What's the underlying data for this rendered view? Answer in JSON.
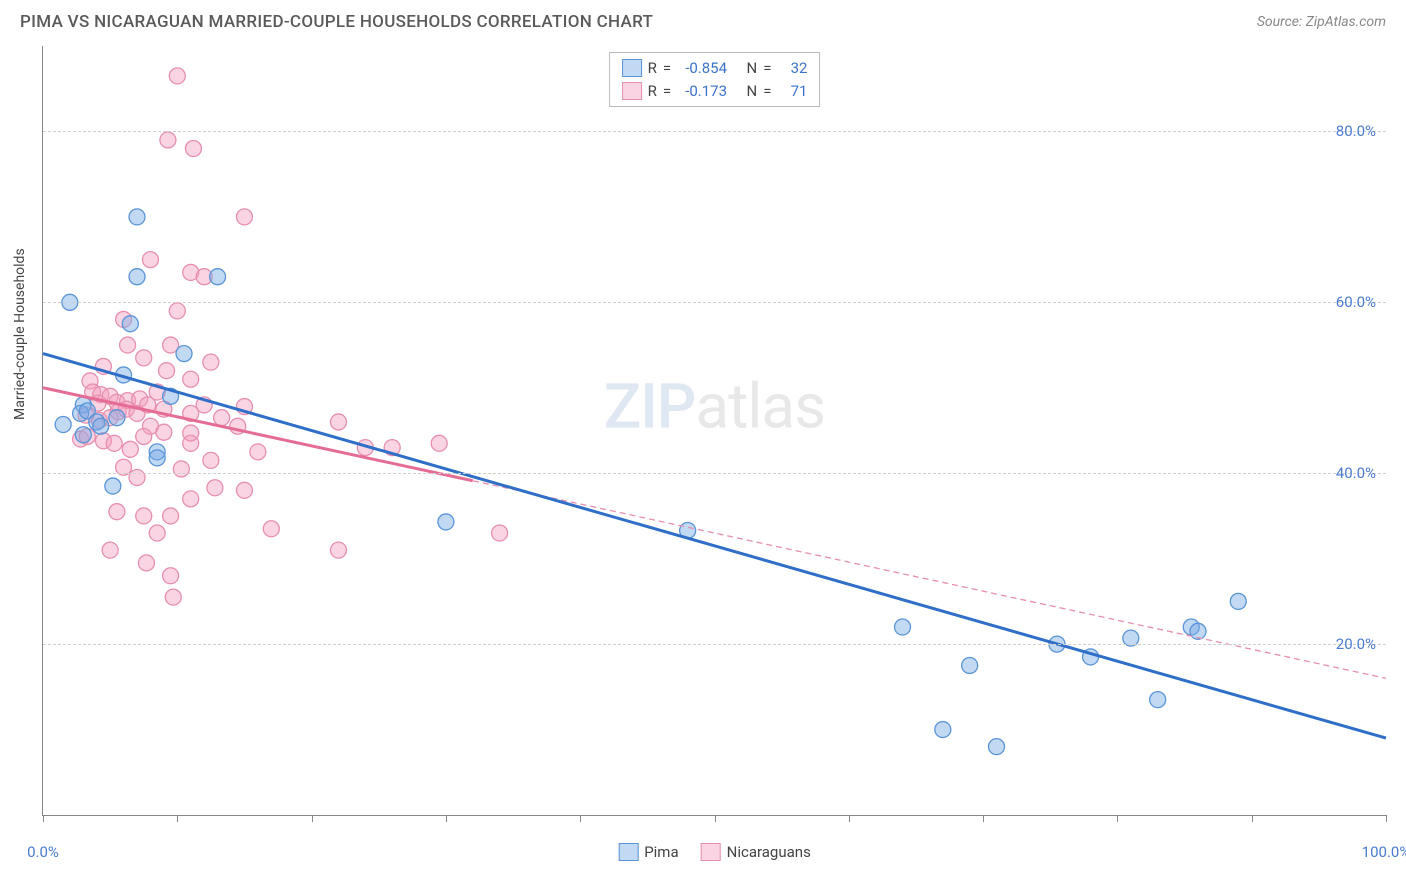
{
  "header": {
    "title": "PIMA VS NICARAGUAN MARRIED-COUPLE HOUSEHOLDS CORRELATION CHART",
    "source": "Source: ZipAtlas.com"
  },
  "chart": {
    "type": "scatter",
    "ylabel": "Married-couple Households",
    "background_color": "#ffffff",
    "grid_color": "#d0d0d0",
    "axis_color": "#888888",
    "tick_color": "#4a7bd0",
    "xlim": [
      0,
      100
    ],
    "ylim": [
      0,
      90
    ],
    "xticks": [
      0,
      10,
      20,
      30,
      40,
      50,
      60,
      70,
      80,
      90,
      100
    ],
    "xtick_labels": {
      "0": "0.0%",
      "100": "100.0%"
    },
    "yticks": [
      20,
      40,
      60,
      80
    ],
    "ytick_labels": {
      "20": "20.0%",
      "40": "40.0%",
      "60": "60.0%",
      "80": "80.0%"
    },
    "marker_radius": 8,
    "marker_opacity": 0.5,
    "watermark": {
      "zip": "ZIP",
      "rest": "atlas"
    }
  },
  "legend_stats": [
    {
      "color": "blue",
      "r_label": "R",
      "r": "-0.854",
      "n_label": "N",
      "n": "32"
    },
    {
      "color": "pink",
      "r_label": "R",
      "r": "-0.173",
      "n_label": "N",
      "n": "71"
    }
  ],
  "bottom_legend": [
    {
      "color": "blue",
      "label": "Pima"
    },
    {
      "color": "pink",
      "label": "Nicaraguans"
    }
  ],
  "series": {
    "pima": {
      "color_fill": "rgba(120,170,230,0.45)",
      "color_stroke": "#5a95d8",
      "trend": {
        "x1": 0,
        "y1": 54,
        "x2": 100,
        "y2": 9,
        "stroke": "#2f6fc8",
        "width": 3,
        "dash": ""
      },
      "points": [
        [
          7,
          70
        ],
        [
          7,
          63
        ],
        [
          2,
          60
        ],
        [
          6.5,
          57.5
        ],
        [
          13,
          63
        ],
        [
          10.5,
          54
        ],
        [
          6,
          51.5
        ],
        [
          3,
          48
        ],
        [
          2.8,
          47
        ],
        [
          3.3,
          47.3
        ],
        [
          4,
          46
        ],
        [
          4.3,
          45.5
        ],
        [
          5.5,
          46.5
        ],
        [
          3,
          44.5
        ],
        [
          9.5,
          49
        ],
        [
          8.5,
          42.5
        ],
        [
          8.5,
          41.8
        ],
        [
          5.2,
          38.5
        ],
        [
          1.5,
          45.7
        ],
        [
          30,
          34.3
        ],
        [
          48,
          33.3
        ],
        [
          64,
          22
        ],
        [
          67,
          10
        ],
        [
          69,
          17.5
        ],
        [
          71,
          8
        ],
        [
          75.5,
          20
        ],
        [
          78,
          18.5
        ],
        [
          81,
          20.7
        ],
        [
          83,
          13.5
        ],
        [
          85.5,
          22
        ],
        [
          86,
          21.5
        ],
        [
          89,
          25
        ]
      ]
    },
    "nicaraguans": {
      "color_fill": "rgba(245,160,190,0.45)",
      "color_stroke": "#e78fb0",
      "trend": {
        "x1": 0,
        "y1": 50,
        "x2": 100,
        "y2": 16,
        "stroke": "#e88fae",
        "width": 1.3,
        "dash": "6 4"
      },
      "points": [
        [
          10,
          86.5
        ],
        [
          9.3,
          79
        ],
        [
          11.2,
          78
        ],
        [
          15,
          70
        ],
        [
          8,
          65
        ],
        [
          11,
          63.5
        ],
        [
          12,
          63
        ],
        [
          10,
          59
        ],
        [
          6,
          58
        ],
        [
          6.3,
          55
        ],
        [
          4.5,
          52.5
        ],
        [
          7.5,
          53.5
        ],
        [
          9.5,
          55
        ],
        [
          9.2,
          52
        ],
        [
          11,
          51
        ],
        [
          12.5,
          53
        ],
        [
          3.5,
          50.8
        ],
        [
          3.7,
          49.5
        ],
        [
          4.3,
          49.2
        ],
        [
          4.1,
          48.2
        ],
        [
          5,
          49
        ],
        [
          5.5,
          48.3
        ],
        [
          5.6,
          47.2
        ],
        [
          6.3,
          48.5
        ],
        [
          6.2,
          47.5
        ],
        [
          7.2,
          48.7
        ],
        [
          7,
          47
        ],
        [
          7.8,
          48
        ],
        [
          8.5,
          49.5
        ],
        [
          3.2,
          46.8
        ],
        [
          4.2,
          46.2
        ],
        [
          5,
          46.5
        ],
        [
          8,
          45.5
        ],
        [
          9,
          47.5
        ],
        [
          11,
          47
        ],
        [
          12,
          48
        ],
        [
          13.3,
          46.5
        ],
        [
          15,
          47.8
        ],
        [
          14.5,
          45.5
        ],
        [
          2.8,
          44
        ],
        [
          3.3,
          44.3
        ],
        [
          4.5,
          43.8
        ],
        [
          5.3,
          43.5
        ],
        [
          6.5,
          42.8
        ],
        [
          7.5,
          44.3
        ],
        [
          9,
          44.8
        ],
        [
          11,
          43.5
        ],
        [
          11,
          44.7
        ],
        [
          6,
          40.7
        ],
        [
          7,
          39.5
        ],
        [
          10.3,
          40.5
        ],
        [
          12.5,
          41.5
        ],
        [
          16,
          42.5
        ],
        [
          22,
          46
        ],
        [
          24,
          43
        ],
        [
          26,
          43
        ],
        [
          29.5,
          43.5
        ],
        [
          34,
          33
        ],
        [
          22,
          31
        ],
        [
          15,
          38
        ],
        [
          12.8,
          38.3
        ],
        [
          11,
          37
        ],
        [
          7.5,
          35
        ],
        [
          9.5,
          35
        ],
        [
          8.5,
          33
        ],
        [
          5.5,
          35.5
        ],
        [
          5,
          31
        ],
        [
          7.7,
          29.5
        ],
        [
          9.5,
          28
        ],
        [
          9.7,
          25.5
        ],
        [
          17,
          33.5
        ]
      ]
    }
  }
}
